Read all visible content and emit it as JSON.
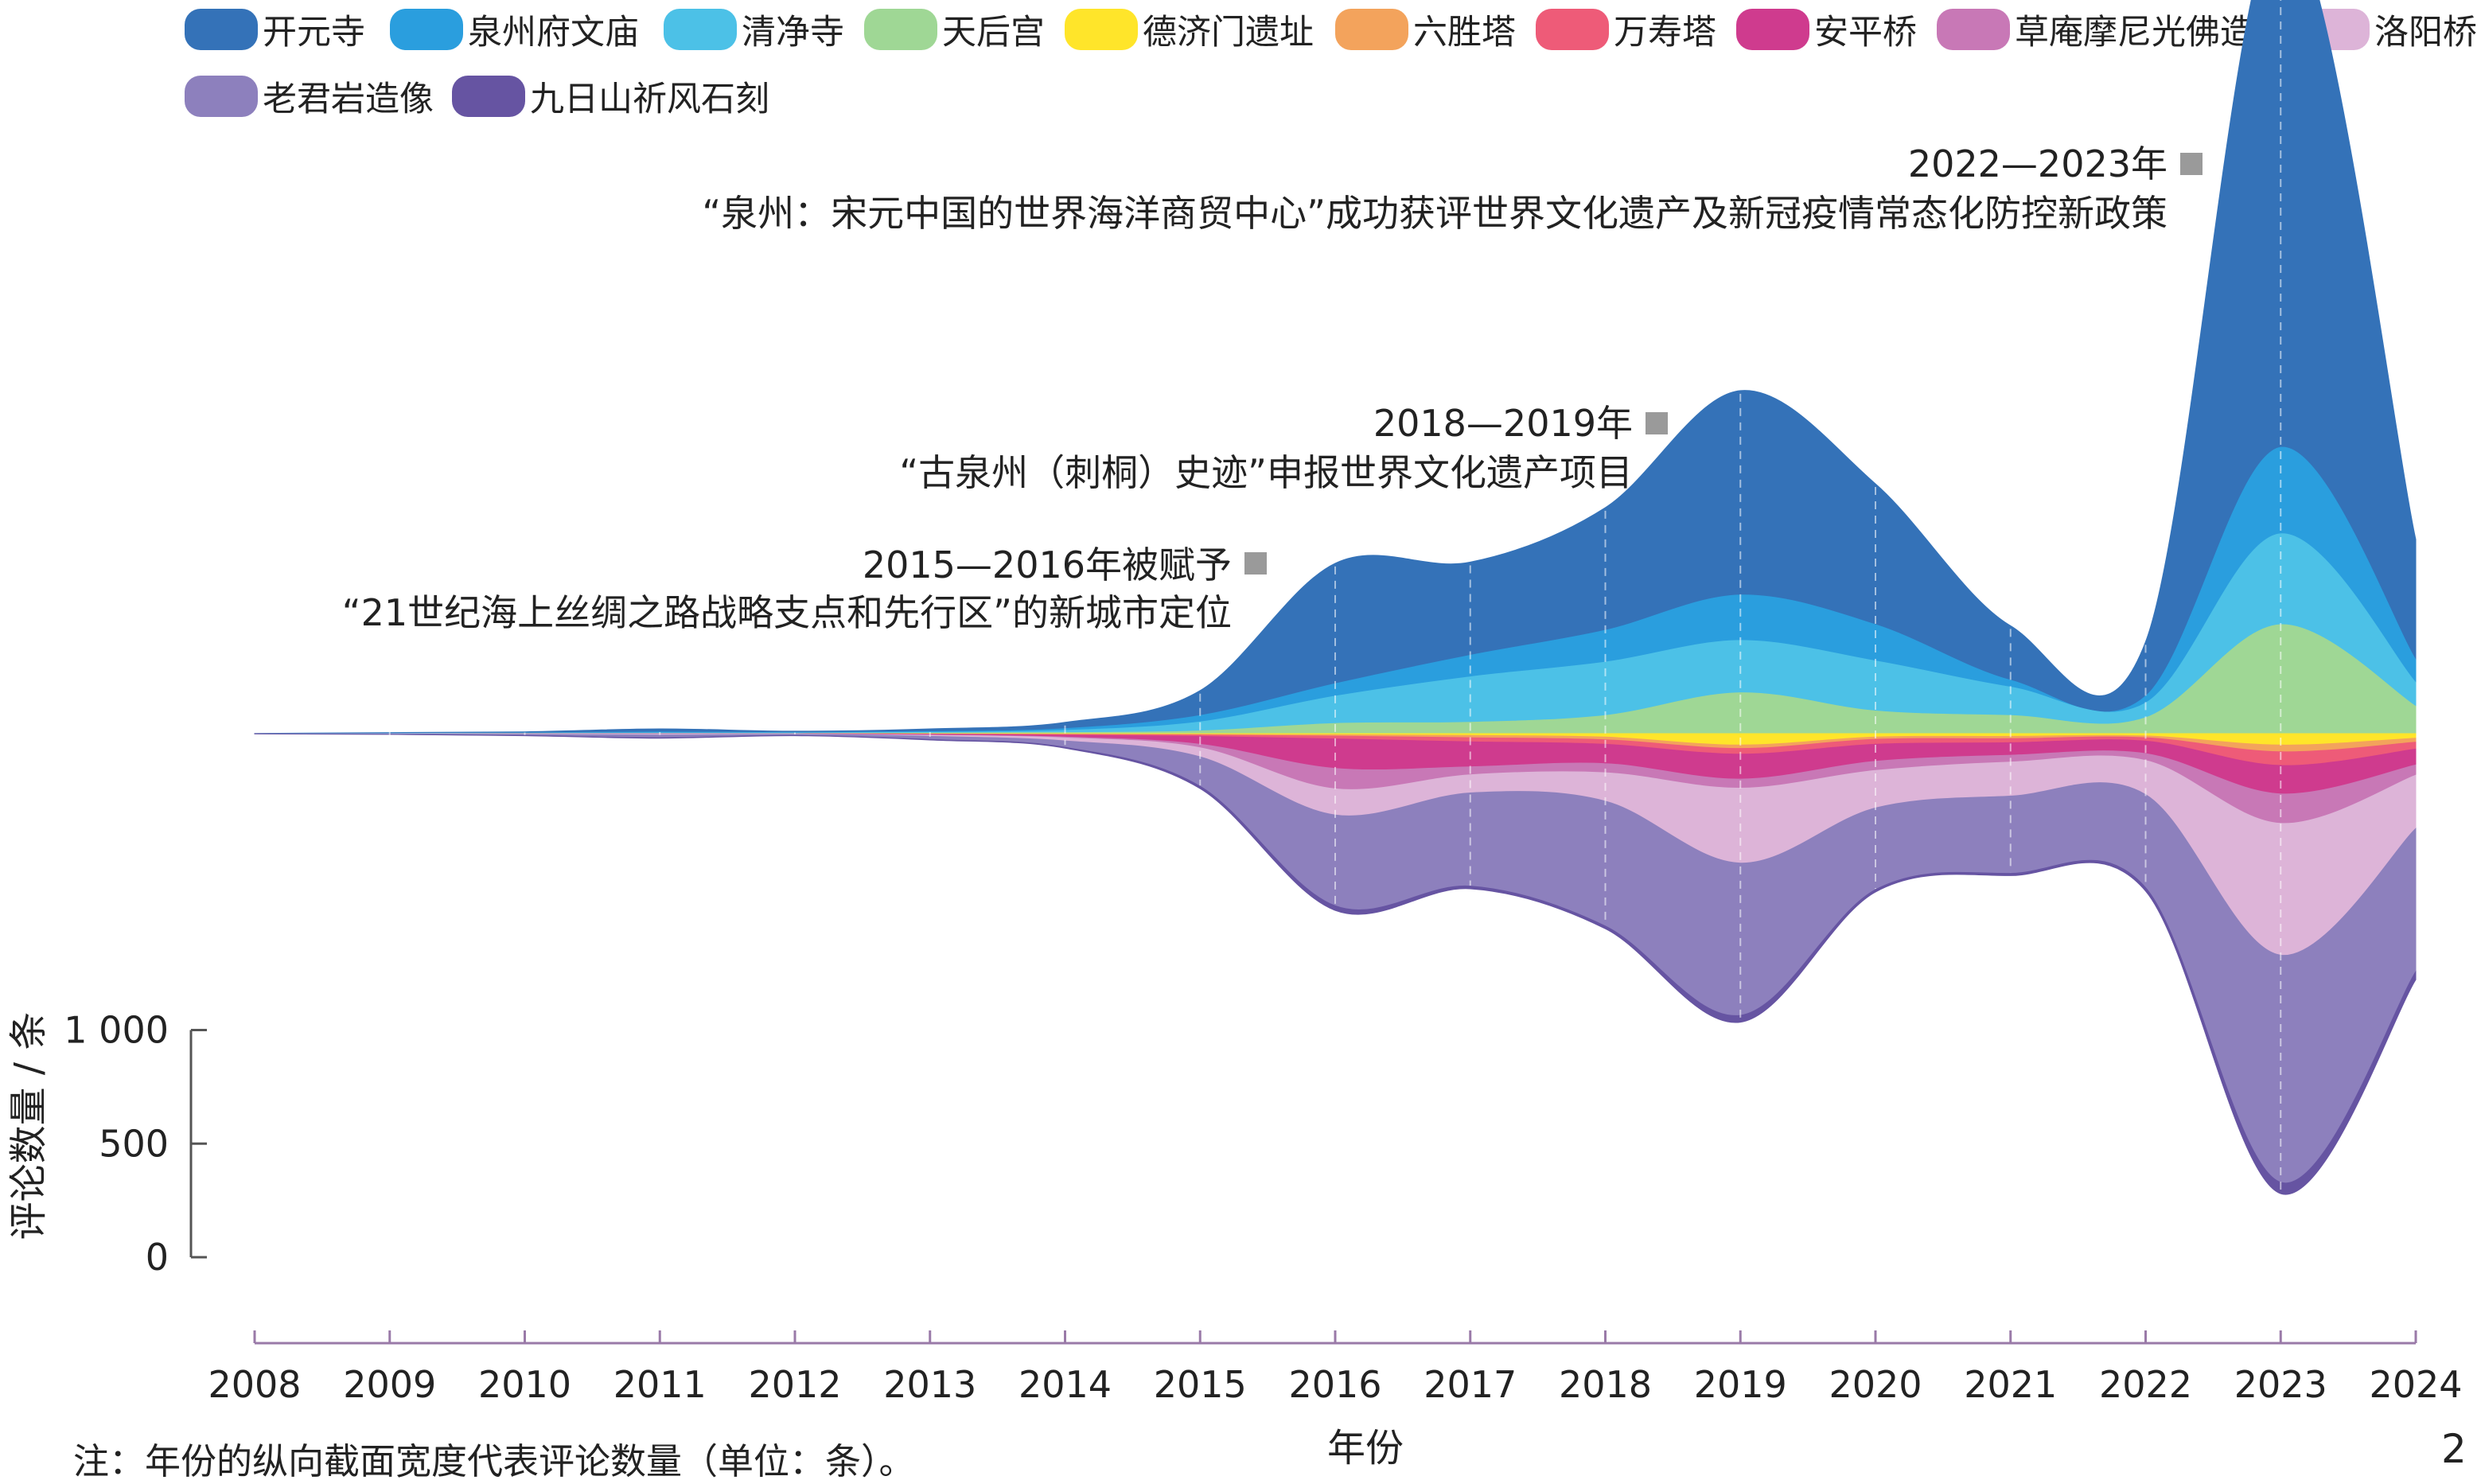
{
  "chart_data": {
    "type": "area",
    "layout": "streamgraph",
    "x": [
      2008,
      2009,
      2010,
      2011,
      2012,
      2013,
      2014,
      2015,
      2016,
      2017,
      2018,
      2019,
      2020,
      2021,
      2022,
      2023,
      2024
    ],
    "xlabel": "年份",
    "ylabel": "评论数量 / 条",
    "yticks": [
      0,
      500,
      1000
    ],
    "yticks_display": [
      "0",
      "500",
      "1 000"
    ],
    "legend_placement": "top",
    "series": [
      {
        "name": "开元寺",
        "color": "#3472b8",
        "values": [
          1,
          3,
          5,
          14,
          6,
          12,
          28,
          110,
          530,
          410,
          540,
          900,
          620,
          240,
          240,
          2330,
          530
        ]
      },
      {
        "name": "泉州府文庙",
        "color": "#2a9ede",
        "values": [
          0,
          1,
          1,
          3,
          2,
          3,
          8,
          28,
          55,
          95,
          140,
          200,
          160,
          30,
          30,
          380,
          100
        ]
      },
      {
        "name": "清净寺",
        "color": "#4cc1e7",
        "values": [
          0,
          1,
          1,
          3,
          2,
          4,
          9,
          40,
          120,
          200,
          235,
          230,
          220,
          125,
          65,
          400,
          105
        ]
      },
      {
        "name": "天后宫",
        "color": "#9fd795",
        "values": [
          0,
          0,
          1,
          1,
          1,
          2,
          5,
          12,
          45,
          50,
          80,
          180,
          100,
          80,
          70,
          480,
          120
        ]
      },
      {
        "name": "德济门遗址",
        "color": "#ffe52a",
        "values": [
          0,
          0,
          0,
          0,
          0,
          1,
          2,
          3,
          5,
          8,
          15,
          50,
          15,
          12,
          10,
          50,
          20
        ]
      },
      {
        "name": "六胜塔",
        "color": "#f3a35c",
        "values": [
          0,
          0,
          0,
          0,
          0,
          1,
          2,
          3,
          6,
          10,
          12,
          15,
          10,
          10,
          8,
          30,
          18
        ]
      },
      {
        "name": "万寿塔",
        "color": "#ee5b78",
        "values": [
          0,
          0,
          0,
          0,
          0,
          1,
          3,
          6,
          12,
          18,
          20,
          25,
          22,
          18,
          15,
          60,
          30
        ]
      },
      {
        "name": "安平桥",
        "color": "#cf3b8e",
        "values": [
          0,
          0,
          1,
          1,
          1,
          3,
          8,
          35,
          130,
          110,
          85,
          110,
          75,
          55,
          55,
          125,
          70
        ]
      },
      {
        "name": "草庵摩尼光佛造像",
        "color": "#c878b6",
        "values": [
          0,
          0,
          0,
          1,
          0,
          1,
          4,
          15,
          90,
          35,
          40,
          40,
          40,
          30,
          30,
          130,
          45
        ]
      },
      {
        "name": "洛阳桥",
        "color": "#ddb4d8",
        "values": [
          0,
          1,
          2,
          4,
          2,
          5,
          13,
          40,
          115,
          80,
          125,
          330,
          165,
          150,
          150,
          580,
          235
        ]
      },
      {
        "name": "老君岩造像",
        "color": "#8d80bd",
        "values": [
          1,
          2,
          5,
          12,
          5,
          14,
          28,
          130,
          400,
          410,
          550,
          670,
          360,
          340,
          410,
          1000,
          630
        ]
      },
      {
        "name": "九日山祈风石刻",
        "color": "#6654a2",
        "values": [
          0,
          0,
          1,
          2,
          1,
          2,
          4,
          10,
          20,
          12,
          12,
          30,
          10,
          10,
          15,
          50,
          35
        ]
      }
    ],
    "annotations": [
      {
        "year_label": "2015—2016年被赋予",
        "text": "“21世纪海上丝绸之路战略支点和先行区”的新城市定位"
      },
      {
        "year_label": "2018—2019年",
        "text": "“古泉州（刺桐）史迹”申报世界文化遗产项目"
      },
      {
        "year_label": "2022—2023年",
        "text": "“泉州：宋元中国的世界海洋商贸中心”成功获评世界文化遗产及新冠疫情常态化防控新政策"
      }
    ]
  },
  "note": "注：年份的纵向截面宽度代表评论数量（单位：条）。",
  "page_number": "2"
}
